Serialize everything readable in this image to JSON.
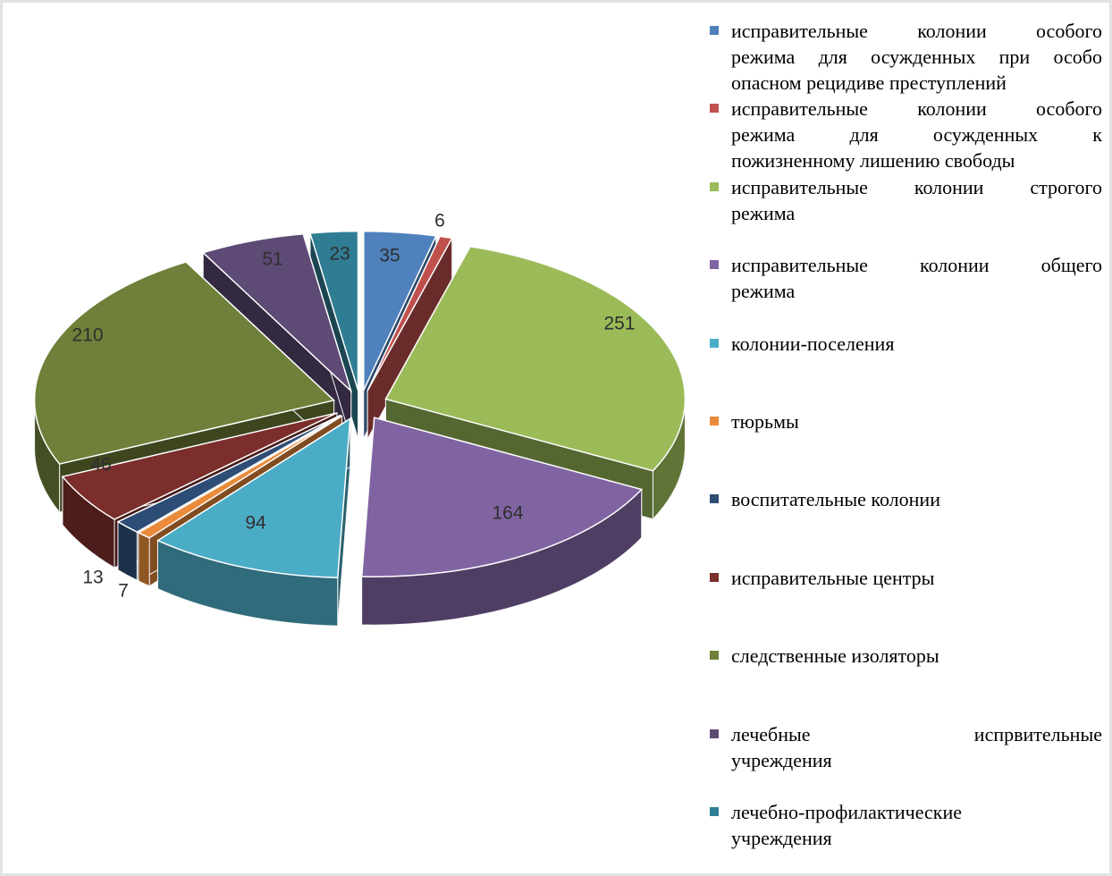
{
  "chart_data": {
    "type": "pie",
    "style": "3d-exploded",
    "title": "",
    "legend_position": "right",
    "grid": false,
    "slices": [
      {
        "label": "исправительные колонии особого режима для осужденных при особо опасном рецидиве преступлений",
        "legend_lines": [
          "исправительные колонии особого",
          "режима для осужденных при особо",
          "опасном рецидиве преступлений"
        ],
        "value": 35,
        "color": "#4F81BD"
      },
      {
        "label": "исправительные колонии особого режима для осужденных к пожизненному лишению свободы",
        "legend_lines": [
          "исправительные колонии особого",
          "режима для осужденных к",
          "пожизненному лишению свободы"
        ],
        "value": 6,
        "color": "#C0504D"
      },
      {
        "label": "исправительные колонии строгого режима",
        "legend_lines": [
          "исправительные колонии строгого",
          "режима"
        ],
        "value": 251,
        "color": "#9BBB59"
      },
      {
        "label": "исправительные колонии общего режима",
        "legend_lines": [
          "исправительные колонии общего",
          "режима"
        ],
        "value": 164,
        "color": "#8064A2"
      },
      {
        "label": "колонии-поселения",
        "legend_lines": [
          "колонии-поселения"
        ],
        "value": 94,
        "color": "#4BACC6"
      },
      {
        "label": "тюрьмы",
        "legend_lines": [
          "тюрьмы"
        ],
        "value": 7,
        "color": "#E98B3A"
      },
      {
        "label": "воспитательные колонии",
        "legend_lines": [
          "воспитательные колонии"
        ],
        "value": 13,
        "color": "#2E4D76"
      },
      {
        "label": "исправительные центры",
        "legend_lines": [
          "исправительные центры"
        ],
        "value": 46,
        "color": "#7B2E2B"
      },
      {
        "label": "следственные изоляторы",
        "legend_lines": [
          "следственные изоляторы"
        ],
        "value": 210,
        "color": "#6E8039"
      },
      {
        "label": "лечебные испрвительные учреждения",
        "legend_lines": [
          "лечебные испрвительные",
          "учреждения"
        ],
        "value": 51,
        "color": "#5D4A75"
      },
      {
        "label": "лечебно-профилактические учреждения",
        "legend_lines": [
          "лечебно-профилактические",
          "учреждения"
        ],
        "value": 23,
        "color": "#2F7D93"
      }
    ]
  }
}
